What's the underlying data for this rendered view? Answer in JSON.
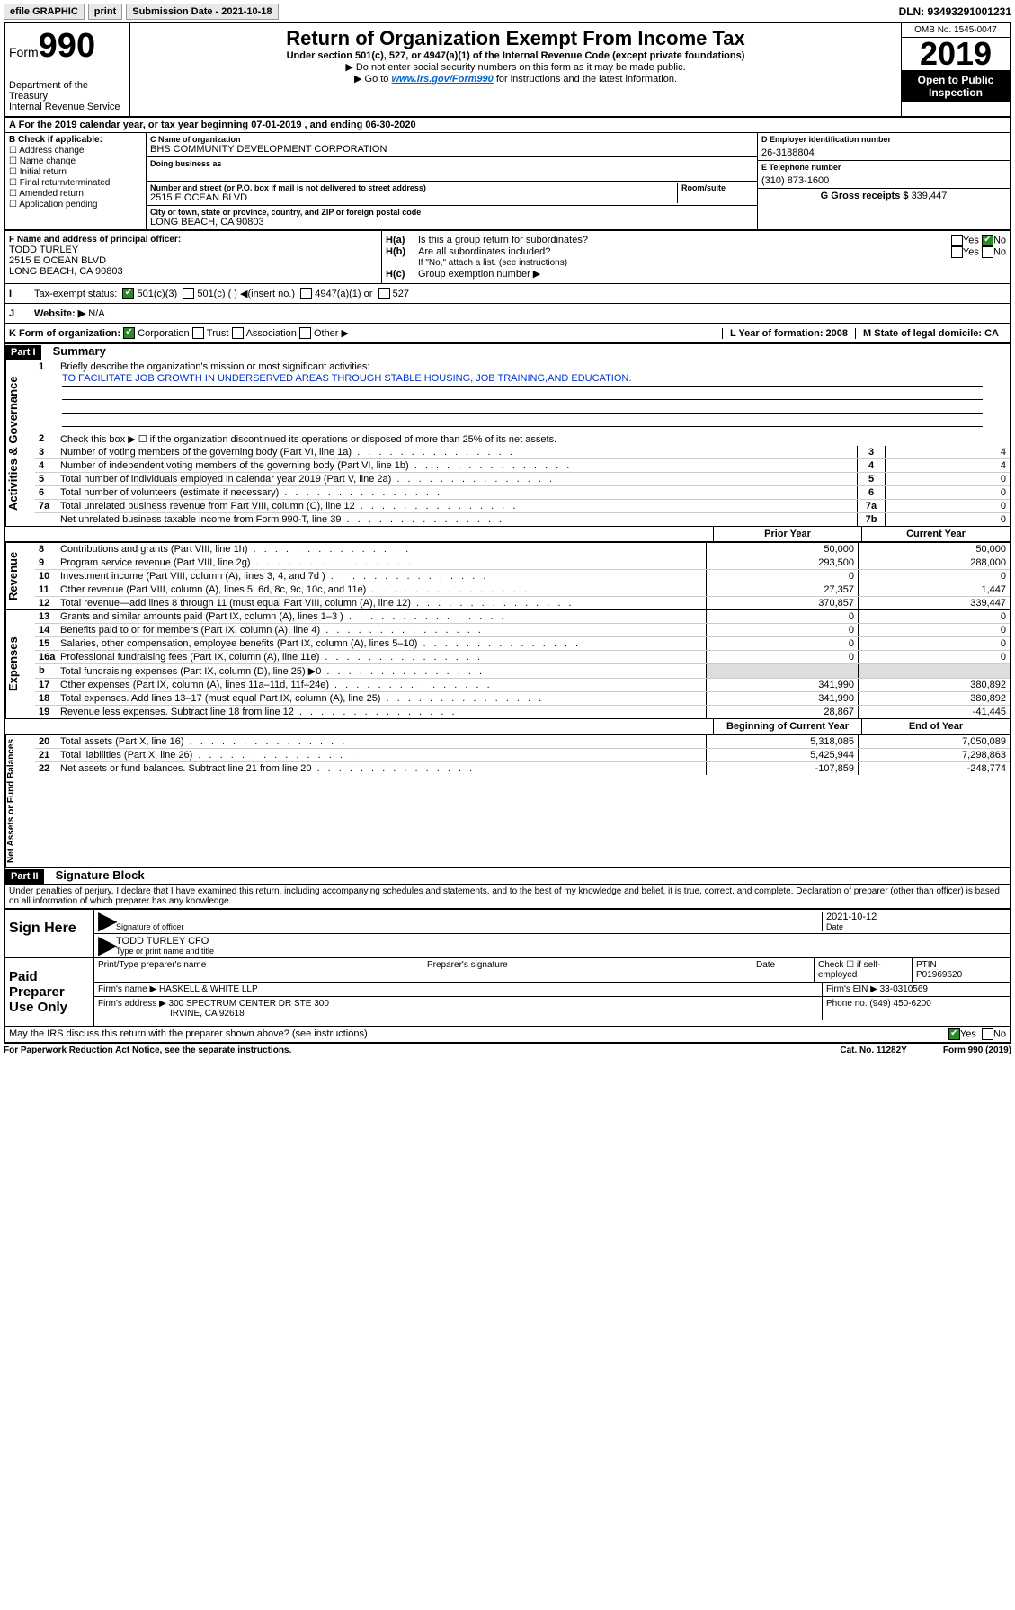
{
  "topbar": {
    "efile": "efile GRAPHIC",
    "print": "print",
    "submission": "Submission Date - 2021-10-18",
    "dln": "DLN: 93493291001231"
  },
  "header": {
    "form_label": "Form",
    "form_num": "990",
    "dept": "Department of the Treasury\nInternal Revenue Service",
    "title": "Return of Organization Exempt From Income Tax",
    "subtitle": "Under section 501(c), 527, or 4947(a)(1) of the Internal Revenue Code (except private foundations)",
    "instr1": "▶ Do not enter social security numbers on this form as it may be made public.",
    "instr2_pre": "▶ Go to ",
    "instr2_link": "www.irs.gov/Form990",
    "instr2_post": " for instructions and the latest information.",
    "omb": "OMB No. 1545-0047",
    "year": "2019",
    "open": "Open to Public Inspection"
  },
  "period": "For the 2019 calendar year, or tax year beginning 07-01-2019    , and ending 06-30-2020",
  "boxB": {
    "label": "B Check if applicable:",
    "items": [
      "Address change",
      "Name change",
      "Initial return",
      "Final return/terminated",
      "Amended return",
      "Application pending"
    ]
  },
  "boxC": {
    "name_label": "C Name of organization",
    "name": "BHS COMMUNITY DEVELOPMENT CORPORATION",
    "dba_label": "Doing business as",
    "addr_label": "Number and street (or P.O. box if mail is not delivered to street address)",
    "room_label": "Room/suite",
    "addr": "2515 E OCEAN BLVD",
    "city_label": "City or town, state or province, country, and ZIP or foreign postal code",
    "city": "LONG BEACH, CA  90803"
  },
  "boxD": {
    "label": "D Employer identification number",
    "value": "26-3188804"
  },
  "boxE": {
    "label": "E Telephone number",
    "value": "(310) 873-1600"
  },
  "boxG": {
    "label": "G Gross receipts $",
    "value": "339,447"
  },
  "boxF": {
    "label": "F  Name and address of principal officer:",
    "name": "TODD TURLEY",
    "addr1": "2515 E OCEAN BLVD",
    "addr2": "LONG BEACH, CA  90803"
  },
  "boxH": {
    "a": "Is this a group return for subordinates?",
    "b": "Are all subordinates included?",
    "b_note": "If \"No,\" attach a list. (see instructions)",
    "c": "Group exemption number ▶"
  },
  "boxI": {
    "label": "Tax-exempt status:",
    "opts": [
      "501(c)(3)",
      "501(c) (  ) ◀(insert no.)",
      "4947(a)(1) or",
      "527"
    ]
  },
  "boxJ": {
    "label": "Website: ▶",
    "value": "N/A"
  },
  "boxK": {
    "label": "K Form of organization:",
    "opts": [
      "Corporation",
      "Trust",
      "Association",
      "Other ▶"
    ],
    "L": "L Year of formation: 2008",
    "M": "M State of legal domicile: CA"
  },
  "part1": {
    "header": "Part I",
    "title": "Summary"
  },
  "summary": {
    "q1": "Briefly describe the organization's mission or most significant activities:",
    "q1_ans": "TO FACILITATE JOB GROWTH IN UNDERSERVED AREAS THROUGH STABLE HOUSING, JOB TRAINING,AND EDUCATION.",
    "q2": "Check this box ▶ ☐  if the organization discontinued its operations or disposed of more than 25% of its net assets.",
    "lines_top": [
      {
        "n": "3",
        "t": "Number of voting members of the governing body (Part VI, line 1a)",
        "b": "3",
        "v": "4"
      },
      {
        "n": "4",
        "t": "Number of independent voting members of the governing body (Part VI, line 1b)",
        "b": "4",
        "v": "4"
      },
      {
        "n": "5",
        "t": "Total number of individuals employed in calendar year 2019 (Part V, line 2a)",
        "b": "5",
        "v": "0"
      },
      {
        "n": "6",
        "t": "Total number of volunteers (estimate if necessary)",
        "b": "6",
        "v": "0"
      },
      {
        "n": "7a",
        "t": "Total unrelated business revenue from Part VIII, column (C), line 12",
        "b": "7a",
        "v": "0"
      },
      {
        "n": "",
        "t": "Net unrelated business taxable income from Form 990-T, line 39",
        "b": "7b",
        "v": "0"
      }
    ],
    "col_headers": {
      "prior": "Prior Year",
      "current": "Current Year"
    },
    "col_headers2": {
      "begin": "Beginning of Current Year",
      "end": "End of Year"
    },
    "revenue": [
      {
        "n": "8",
        "t": "Contributions and grants (Part VIII, line 1h)",
        "p": "50,000",
        "c": "50,000"
      },
      {
        "n": "9",
        "t": "Program service revenue (Part VIII, line 2g)",
        "p": "293,500",
        "c": "288,000"
      },
      {
        "n": "10",
        "t": "Investment income (Part VIII, column (A), lines 3, 4, and 7d )",
        "p": "0",
        "c": "0"
      },
      {
        "n": "11",
        "t": "Other revenue (Part VIII, column (A), lines 5, 6d, 8c, 9c, 10c, and 11e)",
        "p": "27,357",
        "c": "1,447"
      },
      {
        "n": "12",
        "t": "Total revenue—add lines 8 through 11 (must equal Part VIII, column (A), line 12)",
        "p": "370,857",
        "c": "339,447"
      }
    ],
    "expenses": [
      {
        "n": "13",
        "t": "Grants and similar amounts paid (Part IX, column (A), lines 1–3 )",
        "p": "0",
        "c": "0"
      },
      {
        "n": "14",
        "t": "Benefits paid to or for members (Part IX, column (A), line 4)",
        "p": "0",
        "c": "0"
      },
      {
        "n": "15",
        "t": "Salaries, other compensation, employee benefits (Part IX, column (A), lines 5–10)",
        "p": "0",
        "c": "0"
      },
      {
        "n": "16a",
        "t": "Professional fundraising fees (Part IX, column (A), line 11e)",
        "p": "0",
        "c": "0"
      },
      {
        "n": "b",
        "t": "Total fundraising expenses (Part IX, column (D), line 25) ▶0",
        "p": "",
        "c": ""
      },
      {
        "n": "17",
        "t": "Other expenses (Part IX, column (A), lines 11a–11d, 11f–24e)",
        "p": "341,990",
        "c": "380,892"
      },
      {
        "n": "18",
        "t": "Total expenses. Add lines 13–17 (must equal Part IX, column (A), line 25)",
        "p": "341,990",
        "c": "380,892"
      },
      {
        "n": "19",
        "t": "Revenue less expenses. Subtract line 18 from line 12",
        "p": "28,867",
        "c": "-41,445"
      }
    ],
    "netassets": [
      {
        "n": "20",
        "t": "Total assets (Part X, line 16)",
        "p": "5,318,085",
        "c": "7,050,089"
      },
      {
        "n": "21",
        "t": "Total liabilities (Part X, line 26)",
        "p": "5,425,944",
        "c": "7,298,863"
      },
      {
        "n": "22",
        "t": "Net assets or fund balances. Subtract line 21 from line 20",
        "p": "-107,859",
        "c": "-248,774"
      }
    ]
  },
  "sidelabels": {
    "gov": "Activities & Governance",
    "rev": "Revenue",
    "exp": "Expenses",
    "net": "Net Assets or Fund Balances"
  },
  "part2": {
    "header": "Part II",
    "title": "Signature Block"
  },
  "perjury": "Under penalties of perjury, I declare that I have examined this return, including accompanying schedules and statements, and to the best of my knowledge and belief, it is true, correct, and complete. Declaration of preparer (other than officer) is based on all information of which preparer has any knowledge.",
  "sign": {
    "label": "Sign Here",
    "sig_officer": "Signature of officer",
    "date": "2021-10-12",
    "date_label": "Date",
    "name": "TODD TURLEY CFO",
    "name_label": "Type or print name and title"
  },
  "paid": {
    "label": "Paid Preparer Use Only",
    "h1": "Print/Type preparer's name",
    "h2": "Preparer's signature",
    "h3": "Date",
    "h4_check": "Check ☐ if self-employed",
    "h5": "PTIN",
    "ptin": "P01969620",
    "firm_name_label": "Firm's name    ▶",
    "firm_name": "HASKELL & WHITE LLP",
    "firm_ein_label": "Firm's EIN ▶",
    "firm_ein": "33-0310569",
    "firm_addr_label": "Firm's address ▶",
    "firm_addr": "300 SPECTRUM CENTER DR STE 300",
    "firm_city": "IRVINE, CA  92618",
    "phone_label": "Phone no.",
    "phone": "(949) 450-6200"
  },
  "discuss": "May the IRS discuss this return with the preparer shown above? (see instructions)",
  "footer": {
    "pra": "For Paperwork Reduction Act Notice, see the separate instructions.",
    "cat": "Cat. No. 11282Y",
    "form": "Form 990 (2019)"
  }
}
